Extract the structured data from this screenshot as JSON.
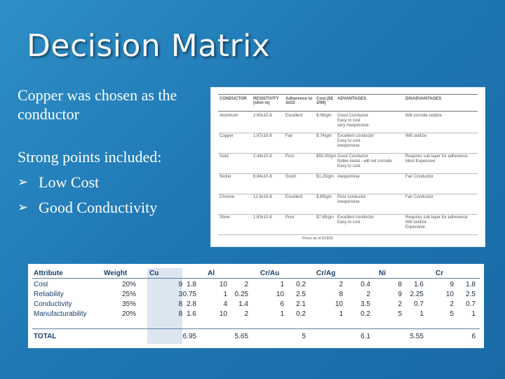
{
  "slide": {
    "title": "Decision Matrix"
  },
  "bullets": {
    "intro": "Copper was chosen as the conductor",
    "strong_points": "Strong points included:",
    "items": [
      "Low Cost",
      "Good Conductivity"
    ]
  },
  "conductor_table": {
    "headers": [
      "CONDUCTOR",
      "RESISTIVITY (ohm m)",
      "Adherence to SiO2",
      "Cost ($$ 3/99)",
      "ADVANTAGES",
      "DISADVANTAGES"
    ],
    "rows": [
      {
        "name": "Aluminum",
        "resistivity": "2.65x10-8",
        "adherence": "Excellent",
        "cost": "$.06/gm",
        "adv": "Good Conductor\nEasy to cost\nvery inexpensive",
        "dis": "Will corrode oxidize"
      },
      {
        "name": "Copper",
        "resistivity": "1.67x10-8",
        "adherence": "Fair",
        "cost": "$.74/gm",
        "adv": "Excellent conductor\nEasy to cost\ninexpensive",
        "dis": "Will oxidize"
      },
      {
        "name": "Gold",
        "resistivity": "2.44x10-8",
        "adherence": "Poor",
        "cost": "$50.00/gm",
        "adv": "Good Conductor\nNoble metal - will not corrode\nEasy to cost",
        "dis": "Requires sub layer for adherence\nMost Expensive"
      },
      {
        "name": "Nickel",
        "resistivity": "6.84x10-8",
        "adherence": "Good",
        "cost": "$1.20/gm",
        "adv": "inexpensive",
        "dis": "Fair Conductor"
      },
      {
        "name": "Chrome",
        "resistivity": "12.9x10-8",
        "adherence": "Excellent",
        "cost": "$.69/gm",
        "adv": "Poor conductor\ninexpensive",
        "dis": "Fair Conductor"
      },
      {
        "name": "Silver",
        "resistivity": "1.63x10-8",
        "adherence": "Poor",
        "cost": "$7.65/gm",
        "adv": "Excellent conductor\nEasy to cost",
        "dis": "Requires sub layer for adherence\nWill oxidize\nExpensive"
      }
    ],
    "footnote": "Prices as of 3/19/01"
  },
  "matrix": {
    "headers": {
      "attribute": "Attribute",
      "weight": "Weight",
      "cu": "Cu",
      "al": "Al",
      "crau": "Cr/Au",
      "crag": "Cr/Ag",
      "ni": "Ni",
      "cr": "Cr"
    },
    "rows": [
      {
        "attr": "Cost",
        "weight": "20%",
        "cu": [
          "9",
          "1.8"
        ],
        "al": [
          "10",
          "2"
        ],
        "crau": [
          "1",
          "0.2"
        ],
        "crag": [
          "2",
          "0.4"
        ],
        "ni": [
          "8",
          "1.6"
        ],
        "cr": [
          "9",
          "1.8"
        ]
      },
      {
        "attr": "Reliability",
        "weight": "25%",
        "cu": [
          "3",
          "0.75"
        ],
        "al": [
          "1",
          "0.25"
        ],
        "crau": [
          "10",
          "2.5"
        ],
        "crag": [
          "8",
          "2"
        ],
        "ni": [
          "9",
          "2.25"
        ],
        "cr": [
          "10",
          "2.5"
        ]
      },
      {
        "attr": "Conductivity",
        "weight": "35%",
        "cu": [
          "8",
          "2.8"
        ],
        "al": [
          "4",
          "1.4"
        ],
        "crau": [
          "6",
          "2.1"
        ],
        "crag": [
          "10",
          "3.5"
        ],
        "ni": [
          "2",
          "0.7"
        ],
        "cr": [
          "2",
          "0.7"
        ]
      },
      {
        "attr": "Manufacturability",
        "weight": "20%",
        "cu": [
          "8",
          "1.6"
        ],
        "al": [
          "10",
          "2"
        ],
        "crau": [
          "1",
          "0.2"
        ],
        "crag": [
          "1",
          "0.2"
        ],
        "ni": [
          "5",
          "1"
        ],
        "cr": [
          "5",
          "1"
        ]
      }
    ],
    "total": {
      "label": "TOTAL",
      "cu": "6.95",
      "al": "5.65",
      "crau": "5",
      "crag": "6.1",
      "ni": "5.55",
      "cr": "6"
    }
  }
}
